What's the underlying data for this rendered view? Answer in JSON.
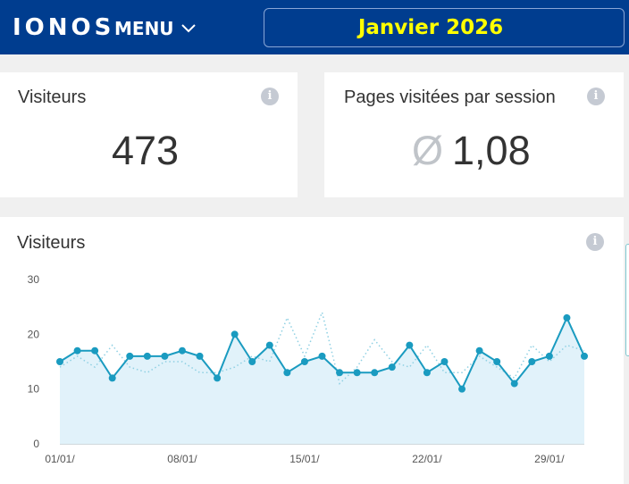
{
  "header": {
    "logo": "IONOS",
    "menu_label": "MENU",
    "month": "Janvier 2026"
  },
  "cards": {
    "visitors": {
      "title": "Visiteurs",
      "value": "473"
    },
    "pages_per_session": {
      "title": "Pages visitées par session",
      "symbol": "Ø",
      "value": "1,08"
    }
  },
  "chart_card": {
    "title": "Visiteurs"
  },
  "icons": {
    "info": "info-icon",
    "menu_chevron": "chevron-down-icon"
  },
  "colors": {
    "header_bg": "#003d8f",
    "month_text": "#ffff00",
    "line": "#1a9bc0",
    "area": "#e1f2fa"
  },
  "chart_data": {
    "type": "line",
    "ylim": [
      0,
      30
    ],
    "yticks": [
      0,
      10,
      20,
      30
    ],
    "xtick_labels": [
      "01/01/",
      "08/01/",
      "15/01/",
      "22/01/",
      "29/01/"
    ],
    "xtick_positions": [
      1,
      8,
      15,
      22,
      29
    ],
    "x": [
      1,
      2,
      3,
      4,
      5,
      6,
      7,
      8,
      9,
      10,
      11,
      12,
      13,
      14,
      15,
      16,
      17,
      18,
      19,
      20,
      21,
      22,
      23,
      24,
      25,
      26,
      27,
      28,
      29,
      30,
      31
    ],
    "series": [
      {
        "values": [
          15,
          17,
          17,
          12,
          16,
          16,
          16,
          17,
          16,
          12,
          20,
          15,
          18,
          13,
          15,
          16,
          13,
          13,
          13,
          14,
          18,
          13,
          15,
          10,
          17,
          15,
          11,
          15,
          16,
          23,
          16
        ]
      },
      {
        "values": [
          14,
          16,
          14,
          18,
          14,
          13,
          15,
          15,
          13,
          13,
          14,
          16,
          15,
          23,
          16,
          24,
          11,
          14,
          19,
          15,
          14,
          18,
          13,
          13,
          16,
          14,
          12,
          18,
          15,
          18,
          17
        ]
      }
    ]
  }
}
